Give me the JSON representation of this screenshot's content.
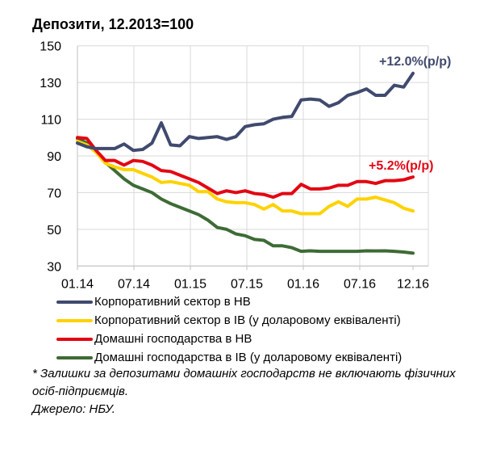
{
  "chart_data": {
    "type": "line",
    "title": "Депозити, 12.2013=100",
    "xlabel": "",
    "ylabel": "",
    "ylim": [
      30,
      150
    ],
    "yticks": [
      "150",
      "130",
      "110",
      "90",
      "70",
      "50",
      "30"
    ],
    "xtick_labels": [
      "01.14",
      "07.14",
      "01.15",
      "07.15",
      "01.16",
      "07.16",
      "12.16"
    ],
    "x": [
      "12.13",
      "01.14",
      "02.14",
      "03.14",
      "04.14",
      "05.14",
      "06.14",
      "07.14",
      "08.14",
      "09.14",
      "10.14",
      "11.14",
      "12.14",
      "01.15",
      "02.15",
      "03.15",
      "04.15",
      "05.15",
      "06.15",
      "07.15",
      "08.15",
      "09.15",
      "10.15",
      "11.15",
      "12.15",
      "01.16",
      "02.16",
      "03.16",
      "04.16",
      "05.16",
      "06.16",
      "07.16",
      "08.16",
      "09.16",
      "10.16",
      "11.16",
      "12.16"
    ],
    "grid": true,
    "legend_position": "bottom",
    "series": [
      {
        "name": "Корпоративний сектор в НВ",
        "color": "#404a6e",
        "values": [
          97,
          95,
          94,
          94,
          94,
          96.5,
          93,
          93.5,
          97,
          108,
          96,
          95.5,
          100.5,
          99.5,
          100,
          100.5,
          99,
          100.5,
          106,
          107,
          107.5,
          110,
          111,
          111.5,
          120.5,
          121,
          120.5,
          117,
          119,
          123,
          124.5,
          126.5,
          123,
          123,
          128.5,
          127.5,
          135
        ]
      },
      {
        "name": "Корпоративний сектор в ІВ (у доларовому еквіваленті)",
        "color": "#ffd200",
        "values": [
          98,
          96,
          92,
          86,
          84,
          82.5,
          82.5,
          80.5,
          78.5,
          75.5,
          76,
          75,
          74,
          70.5,
          70.5,
          66.5,
          65,
          64.5,
          64.5,
          63.5,
          61,
          63.5,
          60,
          60,
          58.5,
          58.5,
          58.5,
          62.5,
          65,
          62.5,
          66.5,
          66.5,
          67.5,
          66,
          64.5,
          61.5,
          60
        ]
      },
      {
        "name": "Домашні господарства в НВ",
        "color": "#e30613",
        "values": [
          100,
          99.5,
          93,
          87.5,
          87.5,
          85,
          87.5,
          87,
          85,
          82,
          81.5,
          79.5,
          77.5,
          75.5,
          72.5,
          69.5,
          71,
          70,
          71,
          69.5,
          69,
          67.5,
          69.5,
          69.5,
          74.5,
          72,
          72,
          72.5,
          74,
          74,
          76,
          76,
          75,
          76.5,
          76.5,
          77,
          78.5
        ]
      },
      {
        "name": "Домашні господарства в ІВ (у доларовому еквіваленті)",
        "color": "#3d6b35",
        "values": [
          99.5,
          97,
          92.5,
          86.5,
          82,
          77.5,
          74,
          72,
          70,
          66.5,
          64,
          62,
          60,
          58,
          55,
          51,
          50,
          47.5,
          46.5,
          44.5,
          44,
          41,
          41,
          40,
          38,
          38.3,
          38,
          38,
          38,
          38,
          38,
          38.3,
          38.2,
          38.3,
          38,
          37.6,
          37
        ]
      }
    ],
    "annotations": [
      {
        "text": "+12.0%(р/р)",
        "color": "#404a6e"
      },
      {
        "text": "+5.2%(р/р)",
        "color": "#e30613"
      }
    ]
  },
  "notes": {
    "footnote": "* Залишки за депозитами домашніх господарств не включають фізичних осіб-підприємців.",
    "source": "Джерело: НБУ."
  }
}
